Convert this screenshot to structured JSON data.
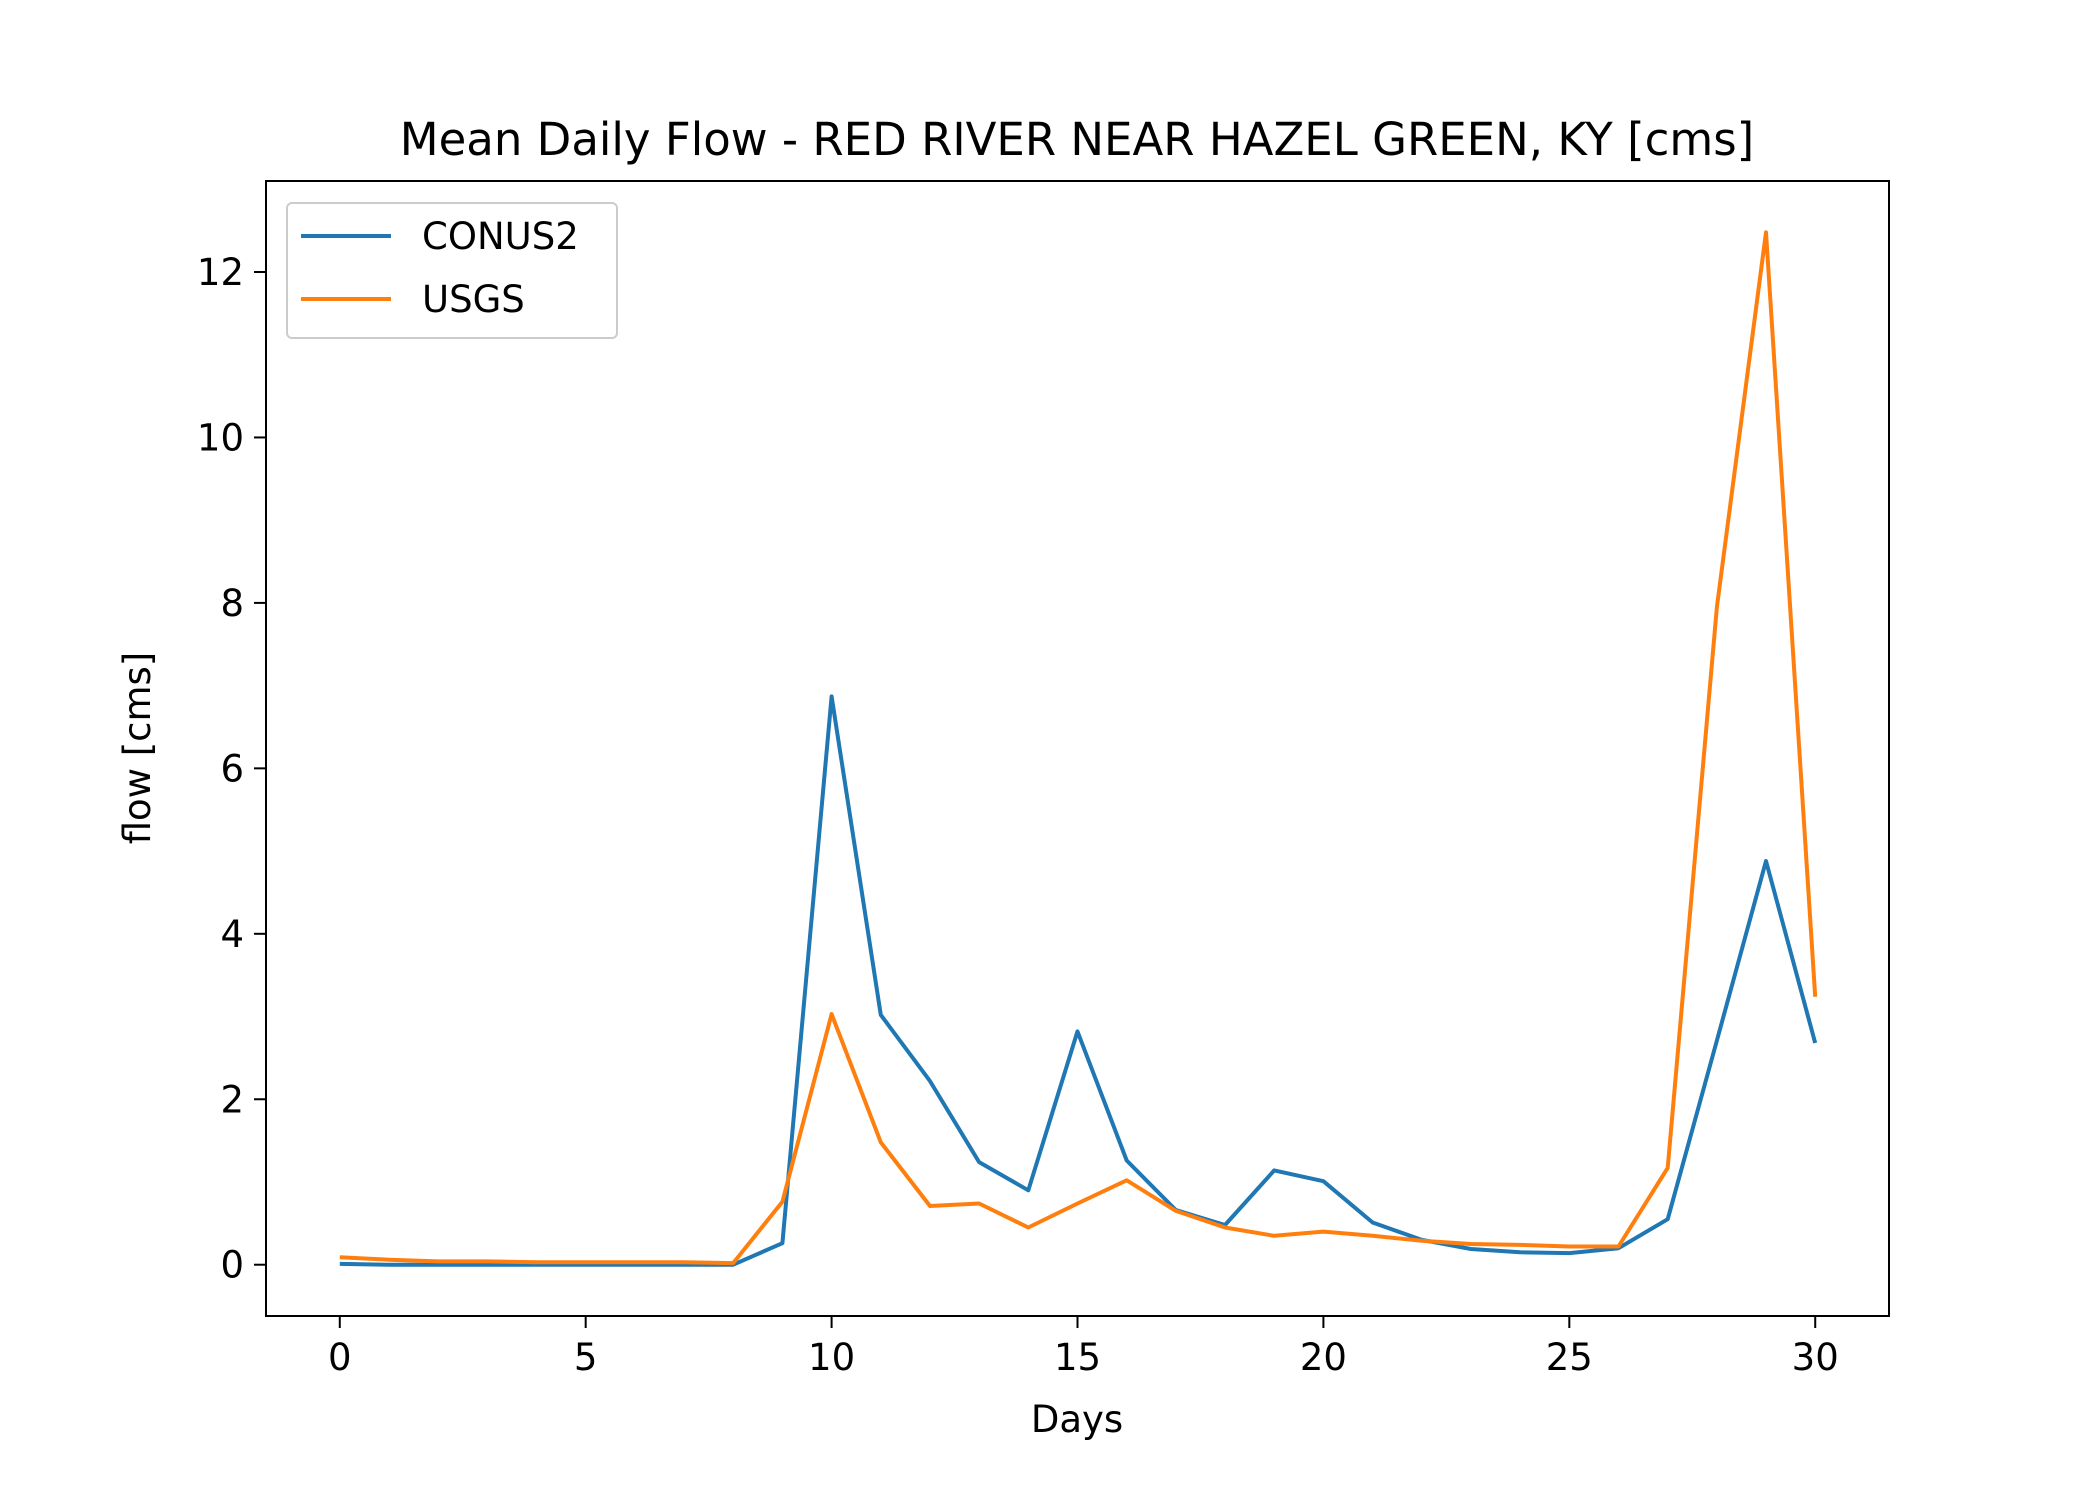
{
  "chart_data": {
    "type": "line",
    "title": "Mean Daily Flow - RED RIVER NEAR HAZEL GREEN, KY [cms]",
    "xlabel": "Days",
    "ylabel": "flow [cms]",
    "xlim": [
      -1.5,
      31.5
    ],
    "ylim": [
      -0.62,
      13.1
    ],
    "xticks": [
      0,
      5,
      10,
      15,
      20,
      25,
      30
    ],
    "yticks": [
      0,
      2,
      4,
      6,
      8,
      10,
      12
    ],
    "grid": false,
    "legend_position": "top-left",
    "x": [
      0,
      1,
      2,
      3,
      4,
      5,
      6,
      7,
      8,
      9,
      10,
      11,
      12,
      13,
      14,
      15,
      16,
      17,
      18,
      19,
      20,
      21,
      22,
      23,
      24,
      25,
      26,
      27,
      28,
      29,
      30
    ],
    "series": [
      {
        "name": "CONUS2",
        "color": "#1f77b4",
        "values": [
          0.01,
          0.0,
          0.0,
          0.0,
          0.0,
          0.0,
          0.0,
          0.0,
          0.0,
          0.26,
          6.87,
          3.02,
          2.22,
          1.24,
          0.9,
          2.82,
          1.26,
          0.66,
          0.48,
          1.14,
          1.01,
          0.51,
          0.3,
          0.19,
          0.15,
          0.14,
          0.2,
          0.55,
          2.71,
          4.88,
          2.68
        ]
      },
      {
        "name": "USGS",
        "color": "#ff7f0e",
        "values": [
          0.09,
          0.06,
          0.04,
          0.04,
          0.03,
          0.03,
          0.03,
          0.03,
          0.02,
          0.76,
          3.03,
          1.48,
          0.71,
          0.74,
          0.45,
          0.74,
          1.02,
          0.65,
          0.45,
          0.35,
          0.4,
          0.35,
          0.29,
          0.25,
          0.24,
          0.22,
          0.22,
          1.17,
          7.95,
          12.48,
          3.24
        ]
      }
    ]
  }
}
